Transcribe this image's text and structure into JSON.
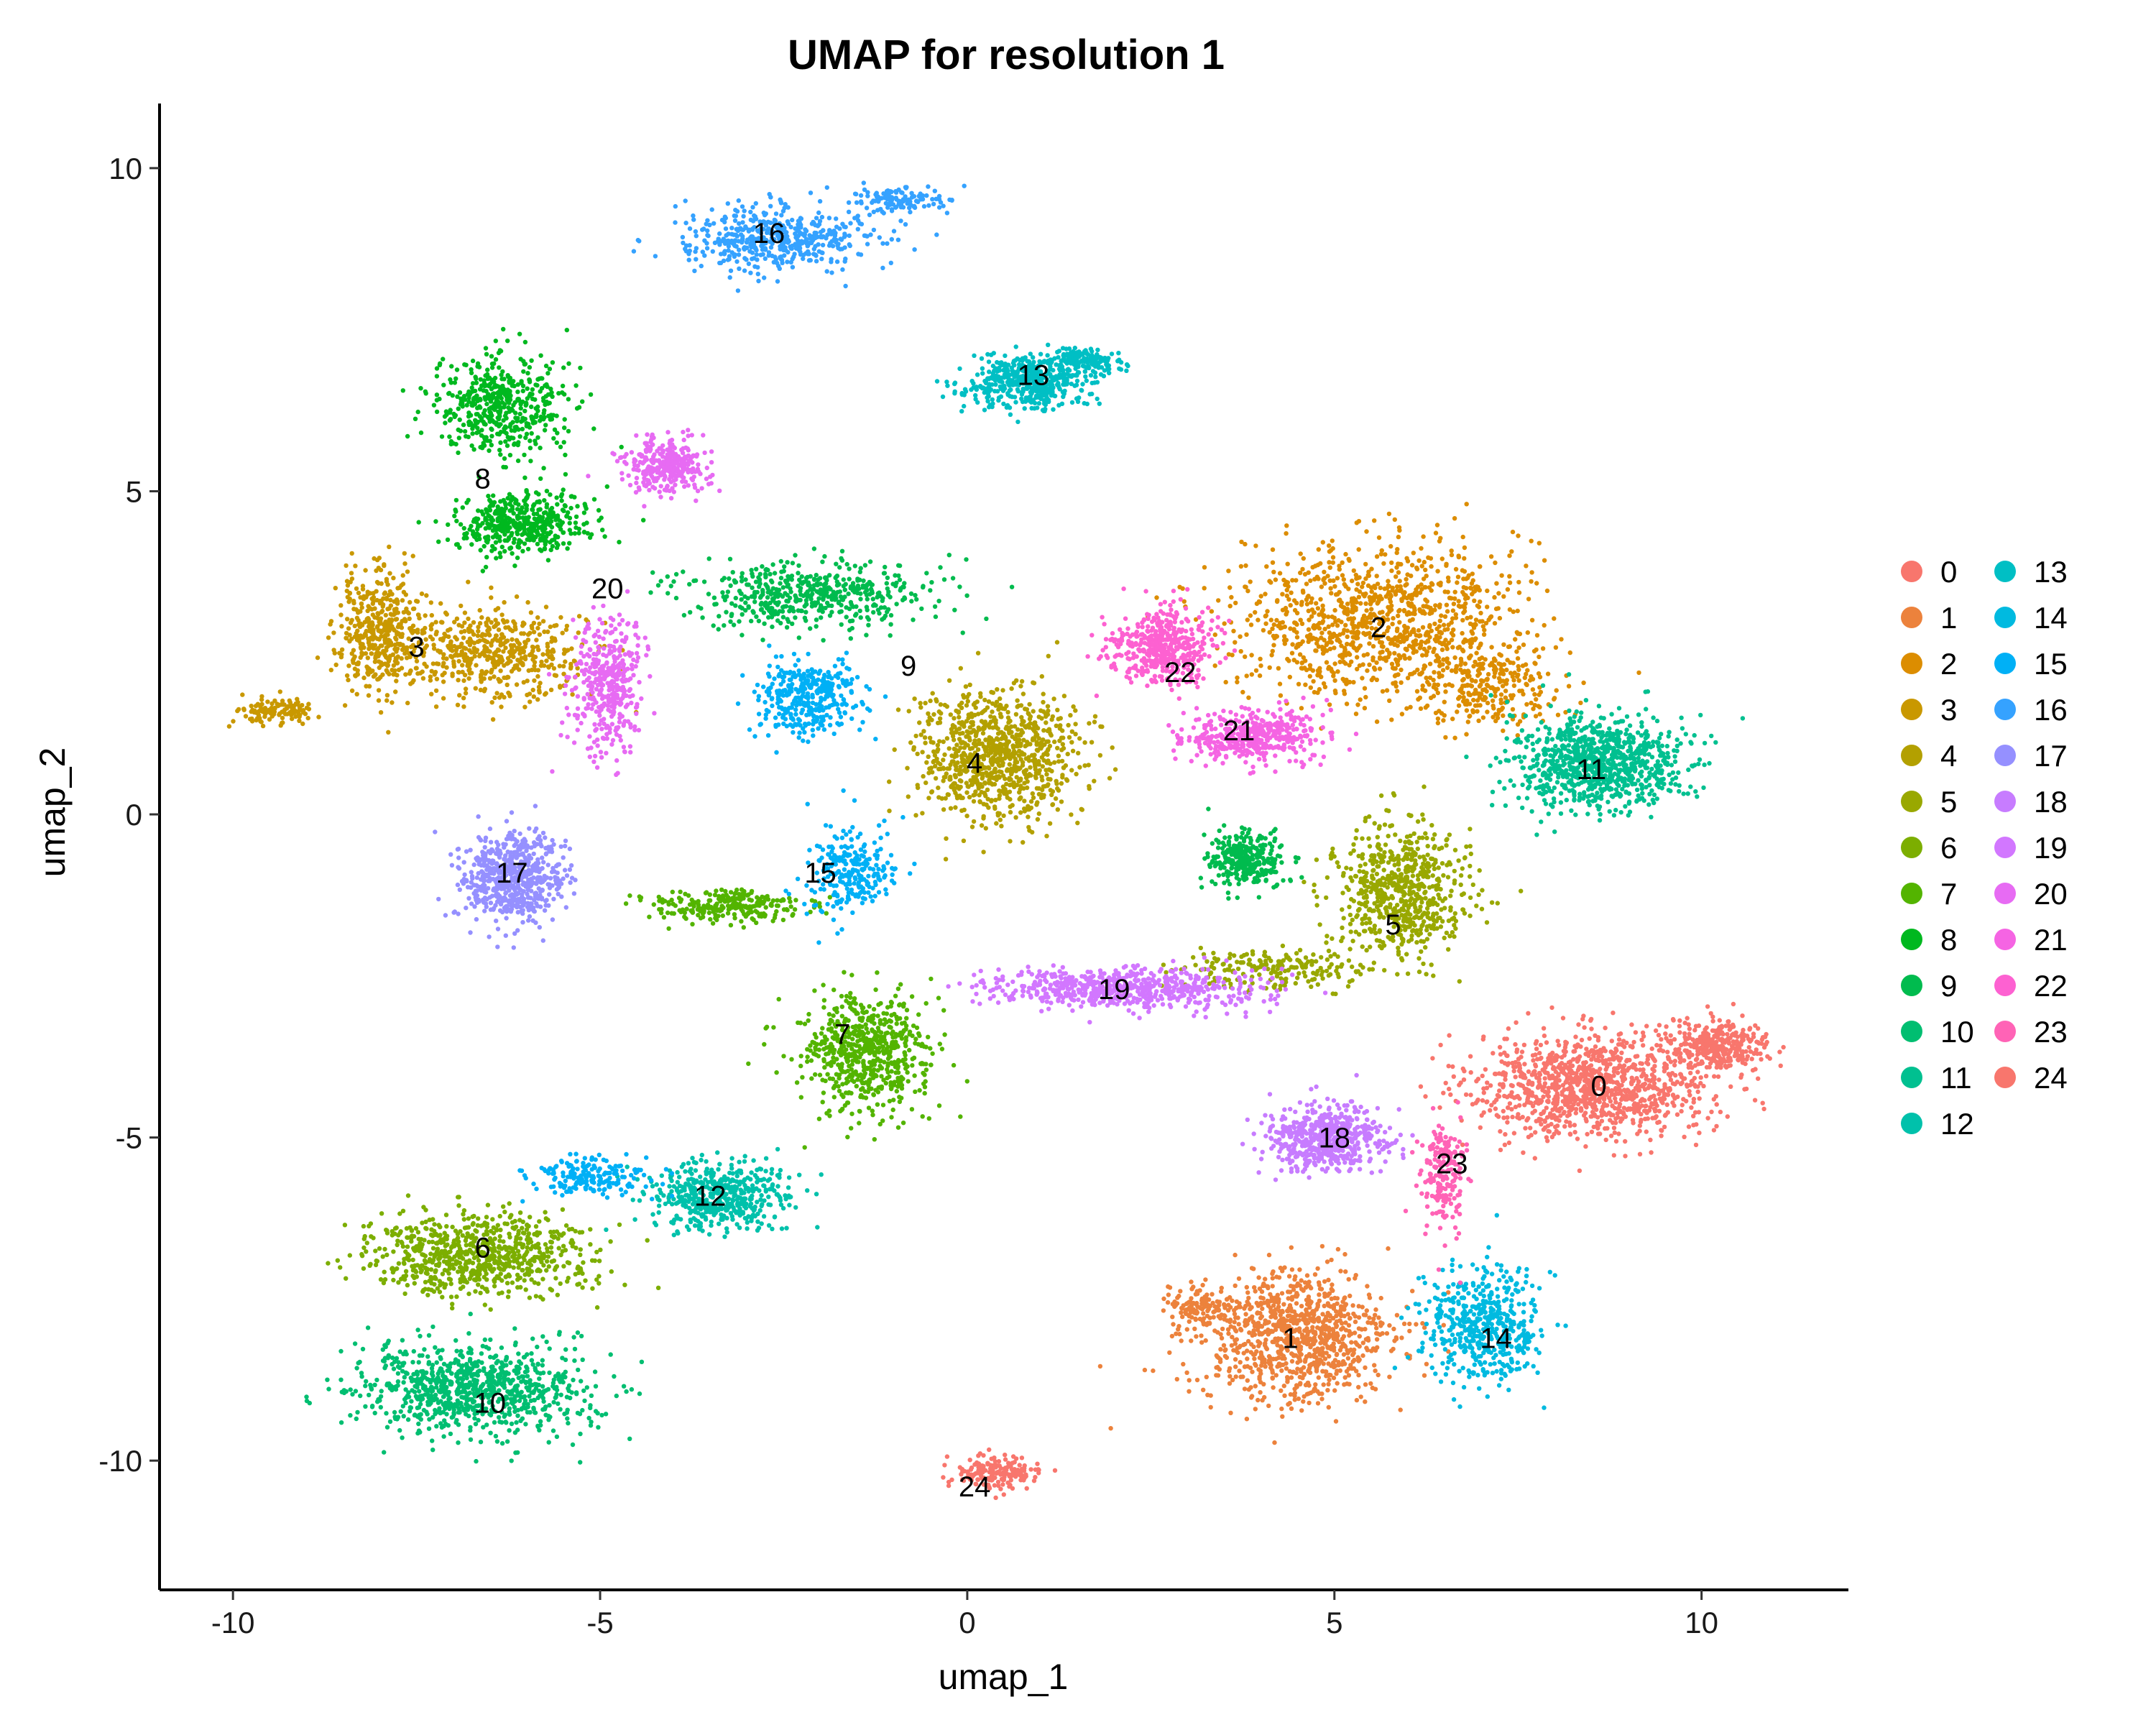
{
  "chart_data": {
    "type": "scatter",
    "title": "UMAP for resolution 1",
    "xlabel": "umap_1",
    "ylabel": "umap_2",
    "xlim": [
      -11.0,
      12.0
    ],
    "ylim": [
      -12.0,
      11.0
    ],
    "xticks": [
      -10,
      -5,
      0,
      5,
      10
    ],
    "yticks": [
      -10,
      -5,
      0,
      5,
      10
    ],
    "legend_position": "right",
    "grid": false,
    "clusters": [
      {
        "name": "0",
        "color": "#F8766D",
        "label_x": 8.6,
        "label_y": -4.2,
        "blobs": [
          [
            8.5,
            -4.2,
            1.6,
            0.8,
            1100
          ],
          [
            10.2,
            -3.6,
            0.7,
            0.4,
            350
          ]
        ]
      },
      {
        "name": "1",
        "color": "#EC823C",
        "label_x": 4.4,
        "label_y": -8.1,
        "blobs": [
          [
            4.5,
            -8.1,
            1.3,
            1.0,
            950
          ],
          [
            3.2,
            -7.6,
            0.5,
            0.3,
            120
          ]
        ]
      },
      {
        "name": "2",
        "color": "#DC8D00",
        "label_x": 5.6,
        "label_y": 2.9,
        "blobs": [
          [
            5.6,
            3.0,
            1.9,
            1.2,
            1100
          ],
          [
            7.2,
            2.0,
            0.9,
            0.6,
            250
          ]
        ]
      },
      {
        "name": "3",
        "color": "#C99800",
        "label_x": -7.5,
        "label_y": 2.6,
        "blobs": [
          [
            -8.0,
            2.8,
            0.6,
            0.9,
            450
          ],
          [
            -6.4,
            2.5,
            1.2,
            0.7,
            500
          ],
          [
            -9.4,
            1.6,
            0.5,
            0.2,
            130
          ]
        ]
      },
      {
        "name": "4",
        "color": "#B3A000",
        "label_x": 0.1,
        "label_y": 0.8,
        "blobs": [
          [
            0.4,
            0.9,
            1.1,
            1.0,
            900
          ]
        ]
      },
      {
        "name": "5",
        "color": "#99A800",
        "label_x": 5.8,
        "label_y": -1.7,
        "blobs": [
          [
            5.9,
            -1.2,
            0.9,
            1.0,
            650
          ],
          [
            4.2,
            -2.4,
            1.3,
            0.3,
            200
          ]
        ]
      },
      {
        "name": "6",
        "color": "#7CAE00",
        "label_x": -6.6,
        "label_y": -6.7,
        "blobs": [
          [
            -6.7,
            -6.8,
            1.5,
            0.6,
            750
          ]
        ]
      },
      {
        "name": "7",
        "color": "#53B400",
        "label_x": -1.7,
        "label_y": -3.4,
        "blobs": [
          [
            -1.4,
            -3.7,
            0.9,
            0.9,
            650
          ],
          [
            -3.3,
            -1.4,
            1.1,
            0.25,
            250
          ]
        ]
      },
      {
        "name": "8",
        "color": "#00B81F",
        "label_x": -6.6,
        "label_y": 5.2,
        "blobs": [
          [
            -6.4,
            6.3,
            0.9,
            0.8,
            500
          ],
          [
            -6.1,
            4.5,
            0.9,
            0.5,
            450
          ]
        ]
      },
      {
        "name": "9",
        "color": "#00BB4E",
        "label_x": -0.8,
        "label_y": 2.3,
        "blobs": [
          [
            -2.2,
            3.4,
            1.7,
            0.5,
            500
          ],
          [
            3.8,
            -0.7,
            0.5,
            0.45,
            300
          ]
        ]
      },
      {
        "name": "10",
        "color": "#00BE71",
        "label_x": -6.5,
        "label_y": -9.1,
        "blobs": [
          [
            -6.7,
            -8.9,
            1.6,
            0.7,
            900
          ]
        ]
      },
      {
        "name": "11",
        "color": "#00C090",
        "label_x": 8.5,
        "label_y": 0.7,
        "blobs": [
          [
            8.6,
            0.8,
            1.2,
            0.7,
            900
          ]
        ]
      },
      {
        "name": "12",
        "color": "#00C1AB",
        "label_x": -3.5,
        "label_y": -5.9,
        "blobs": [
          [
            -3.4,
            -5.9,
            0.9,
            0.5,
            500
          ]
        ]
      },
      {
        "name": "13",
        "color": "#00BFC4",
        "label_x": 0.9,
        "label_y": 6.8,
        "blobs": [
          [
            0.8,
            6.7,
            0.8,
            0.4,
            500
          ],
          [
            1.6,
            7.0,
            0.5,
            0.2,
            150
          ]
        ]
      },
      {
        "name": "14",
        "color": "#00BAE0",
        "label_x": 7.2,
        "label_y": -8.1,
        "blobs": [
          [
            7.0,
            -7.9,
            0.8,
            0.9,
            500
          ]
        ]
      },
      {
        "name": "15",
        "color": "#00B0F6",
        "label_x": -2.0,
        "label_y": -0.9,
        "blobs": [
          [
            -2.2,
            1.8,
            0.7,
            0.6,
            350
          ],
          [
            -1.6,
            -0.9,
            0.6,
            0.7,
            250
          ],
          [
            -5.2,
            -5.6,
            0.8,
            0.3,
            180
          ]
        ]
      },
      {
        "name": "16",
        "color": "#35A2FF",
        "label_x": -2.7,
        "label_y": 9.0,
        "blobs": [
          [
            -2.6,
            8.9,
            1.3,
            0.5,
            500
          ],
          [
            -0.9,
            9.5,
            0.6,
            0.2,
            120
          ]
        ]
      },
      {
        "name": "17",
        "color": "#9590FF",
        "label_x": -6.2,
        "label_y": -0.9,
        "blobs": [
          [
            -6.2,
            -1.0,
            0.7,
            0.7,
            600
          ]
        ]
      },
      {
        "name": "18",
        "color": "#C77CFF",
        "label_x": 5.0,
        "label_y": -5.0,
        "blobs": [
          [
            4.9,
            -5.0,
            0.8,
            0.5,
            550
          ]
        ]
      },
      {
        "name": "19",
        "color": "#D277FF",
        "label_x": 2.0,
        "label_y": -2.7,
        "blobs": [
          [
            2.1,
            -2.7,
            1.8,
            0.3,
            650
          ]
        ]
      },
      {
        "name": "20",
        "color": "#E76BF3",
        "label_x": -4.9,
        "label_y": 3.5,
        "blobs": [
          [
            -4.9,
            2.0,
            0.5,
            1.1,
            400
          ],
          [
            -4.1,
            5.4,
            0.6,
            0.4,
            300
          ]
        ]
      },
      {
        "name": "21",
        "color": "#F564E3",
        "label_x": 3.7,
        "label_y": 1.3,
        "blobs": [
          [
            3.9,
            1.2,
            0.9,
            0.4,
            450
          ]
        ]
      },
      {
        "name": "22",
        "color": "#FD61D1",
        "label_x": 2.9,
        "label_y": 2.2,
        "blobs": [
          [
            2.7,
            2.6,
            0.7,
            0.6,
            450
          ]
        ]
      },
      {
        "name": "23",
        "color": "#FF63B6",
        "label_x": 6.6,
        "label_y": -5.4,
        "blobs": [
          [
            6.5,
            -5.6,
            0.3,
            0.9,
            200
          ]
        ]
      },
      {
        "name": "24",
        "color": "#F8766D",
        "label_x": 0.1,
        "label_y": -10.4,
        "blobs": [
          [
            0.4,
            -10.2,
            0.6,
            0.25,
            180
          ]
        ]
      }
    ]
  }
}
